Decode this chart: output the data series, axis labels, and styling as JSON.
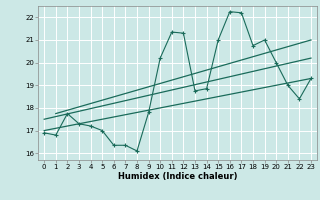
{
  "bg_color": "#cce8e6",
  "plot_bg_color": "#cce8e6",
  "line_color": "#1a6b5a",
  "grid_color": "#ffffff",
  "xlabel": "Humidex (Indice chaleur)",
  "xlim": [
    -0.5,
    23.5
  ],
  "ylim": [
    15.7,
    22.5
  ],
  "xticks": [
    0,
    1,
    2,
    3,
    4,
    5,
    6,
    7,
    8,
    9,
    10,
    11,
    12,
    13,
    14,
    15,
    16,
    17,
    18,
    19,
    20,
    21,
    22,
    23
  ],
  "yticks": [
    16,
    17,
    18,
    19,
    20,
    21,
    22
  ],
  "scatter_x": [
    0,
    1,
    2,
    3,
    4,
    5,
    6,
    7,
    8,
    9,
    10,
    11,
    12,
    13,
    14,
    15,
    16,
    17,
    18,
    19,
    20,
    21,
    22,
    23
  ],
  "scatter_y": [
    16.9,
    16.8,
    17.75,
    17.3,
    17.2,
    17.0,
    16.35,
    16.35,
    16.1,
    17.8,
    20.2,
    21.35,
    21.3,
    18.75,
    18.85,
    21.0,
    22.25,
    22.2,
    20.75,
    21.0,
    20.0,
    19.0,
    18.4,
    19.3
  ],
  "trend1_x": [
    0,
    23
  ],
  "trend1_y": [
    17.0,
    19.3
  ],
  "trend2_x": [
    0,
    23
  ],
  "trend2_y": [
    17.5,
    20.2
  ],
  "trend3_x": [
    1,
    23
  ],
  "trend3_y": [
    17.75,
    21.0
  ],
  "tick_fontsize": 5.0,
  "xlabel_fontsize": 6.0
}
